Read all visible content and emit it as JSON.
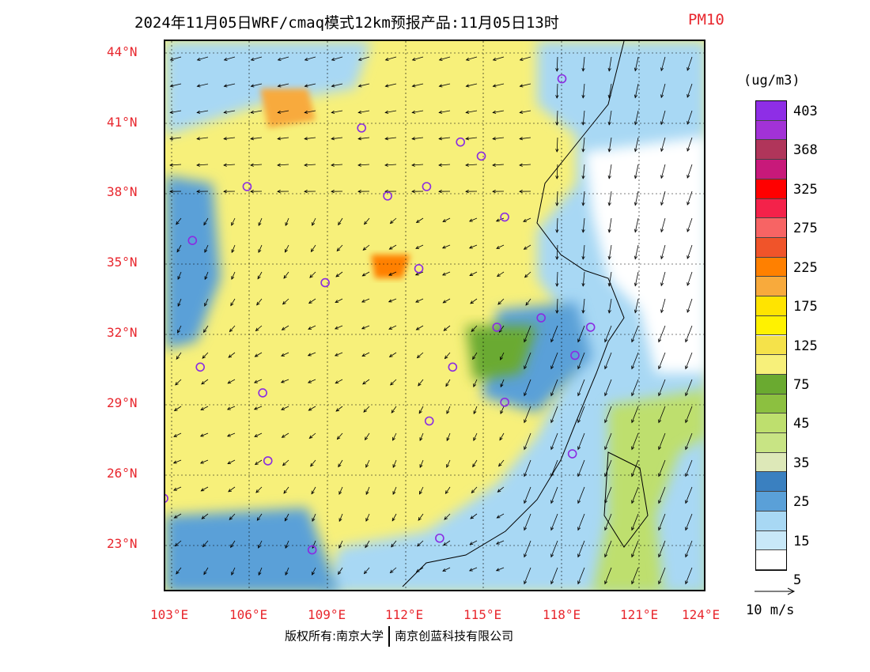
{
  "title": {
    "main": "2024年11月05日WRF/cmaq模式12km预报产品:11月05日13时",
    "pollutant": "PM10",
    "pollutant_color": "#e8262d"
  },
  "axes": {
    "lat_labels": [
      "44°N",
      "41°N",
      "38°N",
      "35°N",
      "32°N",
      "29°N",
      "26°N",
      "23°N"
    ],
    "lon_labels": [
      "103°E",
      "106°E",
      "109°E",
      "112°E",
      "115°E",
      "118°E",
      "121°E",
      "124°E"
    ],
    "label_color": "#e8262d"
  },
  "legend": {
    "unit": "(ug/m3)",
    "levels": [
      "403",
      "368",
      "325",
      "275",
      "225",
      "175",
      "125",
      "75",
      "45",
      "35",
      "25",
      "15",
      "5"
    ],
    "colors": [
      "#8e2ee6",
      "#a232d6",
      "#b0355a",
      "#c8197a",
      "#ff0000",
      "#f4224a",
      "#f76464",
      "#f0542a",
      "#ff8000",
      "#f8aa3c",
      "#ffe400",
      "#fff200",
      "#f5e24a",
      "#f7f07a",
      "#6aaa30",
      "#8cc040",
      "#bedf6e",
      "#c8e484",
      "#dde8b8",
      "#3a80c0",
      "#5aa0d8",
      "#a8d8f4",
      "#c8e8f8",
      "#ffffff"
    ]
  },
  "vector_reference": {
    "label": "10 m/s"
  },
  "stations": [
    "42.9N,118.0E",
    "40.8N,110.3E",
    "40.2N,114.1E",
    "39.6N,114.9E",
    "38.3N,105.9E",
    "38.3N,112.8E",
    "37.9N,111.3E",
    "37.0N,115.8E",
    "36.0N,103.8E",
    "34.8N,112.5E",
    "34.2N,108.9E",
    "32.3N,115.5E",
    "32.7N,117.2E",
    "32.3N,119.1E",
    "31.1N,118.5E",
    "30.6N,104.1E",
    "30.6N,113.8E",
    "29.5N,106.5E",
    "29.1N,115.8E",
    "28.3N,112.9E",
    "26.9N,118.4E",
    "26.6N,106.7E",
    "25.0N,102.7E",
    "23.3N,113.3E",
    "22.8N,108.4E"
  ],
  "station_color": "#8a2be2",
  "copyright": {
    "left": "版权所有:南京大学",
    "right": "南京创蓝科技有限公司"
  }
}
